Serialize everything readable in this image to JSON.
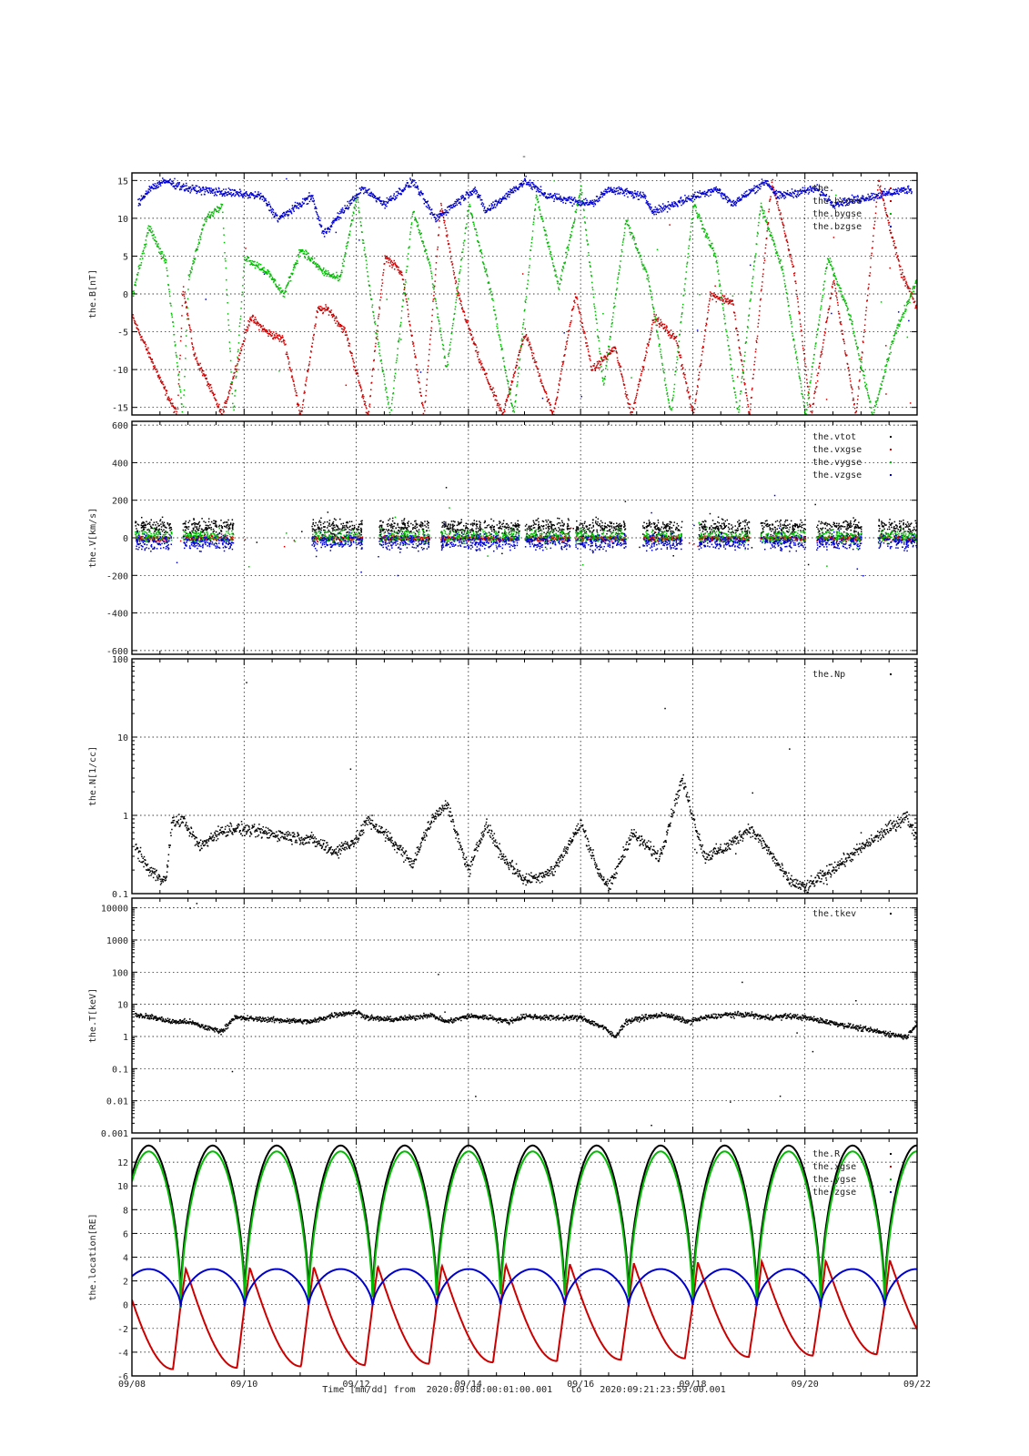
{
  "figure": {
    "top_title": "-",
    "caption": {
      "prefix": "Time [mm/dd]  from",
      "from": "2020:09:08:00:01:00.001",
      "mid": "to",
      "to": "2020:09:21:23:59:00.001"
    },
    "x_tick_labels": [
      "09/08",
      "09/10",
      "09/12",
      "09/14",
      "09/16",
      "09/18",
      "09/20",
      "09/22"
    ],
    "x_range_days": [
      0,
      14
    ]
  },
  "colors": {
    "black": "#000000",
    "red": "#cc0000",
    "green": "#00bb00",
    "blue": "#0000cc"
  },
  "chart_data": [
    {
      "type": "scatter",
      "ylabel": "the.B[nT]",
      "ylim": [
        -16,
        16
      ],
      "yticks": [
        15,
        10,
        5,
        0,
        -5,
        -10,
        -15
      ],
      "ytick_labels": [
        "15",
        "10",
        "5",
        "0",
        "-5",
        "-10",
        "-15"
      ],
      "legend": [
        "the.",
        "the.bxgse",
        "the.bygse",
        "the.bzgse"
      ],
      "legend_position": "top-right",
      "series": [
        {
          "name": "the.bxgse",
          "color": "red",
          "x": [
            0.0,
            0.3,
            0.6,
            0.8,
            0.9,
            1.1,
            1.3,
            1.6,
            2.1,
            2.4,
            2.7,
            3.0,
            3.3,
            3.5,
            3.8,
            4.2,
            4.5,
            4.8,
            5.2,
            5.5,
            5.8,
            6.2,
            6.6,
            7.0,
            7.5,
            7.9,
            8.2,
            8.6,
            8.9,
            9.3,
            9.7,
            10.0,
            10.3,
            10.7,
            11.0,
            11.4,
            11.8,
            12.1,
            12.5,
            12.9,
            13.3,
            13.7,
            14.0
          ],
          "y": [
            -3,
            -8,
            -13,
            -16,
            1,
            -8,
            -11,
            -16,
            -3,
            -5,
            -6,
            -16,
            -2,
            -2,
            -5,
            -16,
            5,
            3,
            -16,
            12,
            0,
            -9,
            -16,
            -5,
            -16,
            0,
            -10,
            -7,
            -16,
            -3,
            -6,
            -16,
            0,
            -1,
            -16,
            15,
            3,
            -16,
            2,
            -16,
            15,
            3,
            -2
          ]
        },
        {
          "name": "the.bygse",
          "color": "green",
          "x": [
            0.0,
            0.3,
            0.6,
            0.9,
            1.0,
            1.3,
            1.6,
            1.8,
            2.0,
            2.4,
            2.7,
            3.0,
            3.4,
            3.7,
            4.0,
            4.3,
            4.6,
            5.0,
            5.3,
            5.6,
            6.0,
            6.4,
            6.8,
            7.2,
            7.6,
            8.0,
            8.4,
            8.8,
            9.2,
            9.6,
            10.0,
            10.4,
            10.8,
            11.2,
            11.6,
            12.0,
            12.4,
            12.8,
            13.2,
            13.6,
            14.0
          ],
          "y": [
            0,
            9,
            4,
            -16,
            2,
            10,
            12,
            -16,
            5,
            3,
            0,
            6,
            3,
            2,
            13,
            -3,
            -16,
            11,
            4,
            -10,
            12,
            0,
            -16,
            13,
            1,
            14,
            -12,
            10,
            2,
            -16,
            12,
            5,
            -16,
            12,
            3,
            -16,
            5,
            -3,
            -16,
            -5,
            2
          ]
        },
        {
          "name": "the.bzgse",
          "color": "blue",
          "x": [
            0.1,
            0.3,
            0.6,
            1.0,
            2.3,
            2.6,
            3.2,
            3.4,
            4.1,
            4.5,
            5.0,
            5.4,
            6.1,
            6.3,
            7.0,
            7.4,
            8.2,
            8.5,
            9.1,
            9.3,
            10.4,
            10.7,
            11.3,
            11.5,
            12.2,
            12.5,
            13.9
          ],
          "y": [
            12,
            14,
            15,
            14,
            13,
            10,
            13,
            8,
            14,
            12,
            15,
            10,
            14,
            11,
            15,
            13,
            12,
            14,
            13,
            11,
            14,
            12,
            15,
            13,
            14,
            12,
            14
          ]
        }
      ]
    },
    {
      "type": "scatter",
      "ylabel": "the.V[km/s]",
      "ylim": [
        -620,
        620
      ],
      "yticks": [
        600,
        400,
        200,
        0,
        -200,
        -400,
        -600
      ],
      "ytick_labels": [
        "600",
        "400",
        "200",
        "0",
        "-200",
        "-400",
        "-600"
      ],
      "legend": [
        "the.vtot",
        "the.vxgse",
        "the.vygse",
        "the.vzgse"
      ],
      "legend_position": "top-right",
      "segments": [
        [
          0.05,
          0.7
        ],
        [
          0.9,
          1.8
        ],
        [
          3.2,
          4.1
        ],
        [
          4.4,
          5.3
        ],
        [
          5.5,
          6.9
        ],
        [
          7.0,
          7.8
        ],
        [
          7.9,
          8.8
        ],
        [
          9.1,
          9.8
        ],
        [
          10.1,
          11.0
        ],
        [
          11.2,
          12.0
        ],
        [
          12.2,
          13.0
        ],
        [
          13.3,
          14.0
        ]
      ],
      "series": [
        {
          "name": "the.vtot",
          "color": "black",
          "typical": 60,
          "spread": 60
        },
        {
          "name": "the.vxgse",
          "color": "red",
          "typical": 0,
          "spread": 20
        },
        {
          "name": "the.vygse",
          "color": "green",
          "typical": 10,
          "spread": 50
        },
        {
          "name": "the.vzgse",
          "color": "blue",
          "typical": -20,
          "spread": 60
        }
      ]
    },
    {
      "type": "scatter",
      "scale": "log",
      "ylabel": "the.N[1/cc]",
      "ylim": [
        0.1,
        100
      ],
      "yticks": [
        100,
        10,
        1,
        0.1
      ],
      "ytick_labels": [
        "100",
        "10",
        "1",
        "0.1"
      ],
      "legend": [
        "the.Np"
      ],
      "legend_position": "top-right",
      "series": [
        {
          "name": "the.Np",
          "color": "black",
          "x": [
            0.05,
            0.3,
            0.6,
            0.7,
            0.9,
            1.2,
            1.5,
            1.8,
            3.2,
            3.6,
            4.0,
            4.2,
            4.6,
            5.0,
            5.3,
            5.6,
            5.8,
            6.0,
            6.3,
            6.6,
            7.0,
            7.5,
            8.0,
            8.3,
            8.5,
            8.9,
            9.4,
            9.8,
            10.2,
            10.6,
            11.0,
            11.3,
            11.7,
            12.0,
            13.8,
            14.0
          ],
          "y": [
            0.4,
            0.2,
            0.15,
            0.8,
            0.9,
            0.4,
            0.6,
            0.7,
            0.5,
            0.35,
            0.5,
            0.9,
            0.5,
            0.25,
            0.8,
            1.5,
            0.5,
            0.2,
            0.8,
            0.3,
            0.15,
            0.2,
            0.8,
            0.2,
            0.12,
            0.6,
            0.3,
            3,
            0.3,
            0.4,
            0.7,
            0.4,
            0.15,
            0.12,
            1,
            0.5
          ]
        }
      ]
    },
    {
      "type": "scatter",
      "scale": "log",
      "ylabel": "the.T[keV]",
      "ylim": [
        0.001,
        20000
      ],
      "yticks": [
        10000,
        1000,
        100,
        10,
        1,
        0.1,
        0.01,
        0.001
      ],
      "ytick_labels": [
        "10000",
        "1000",
        "100",
        "10",
        "1",
        "0.1",
        "0.01",
        "0.001"
      ],
      "legend": [
        "the.tkev"
      ],
      "legend_position": "top-right",
      "series": [
        {
          "name": "the.tkev",
          "color": "black",
          "x": [
            0.05,
            0.4,
            0.7,
            1.0,
            1.3,
            1.6,
            1.8,
            3.2,
            3.6,
            4.0,
            4.2,
            4.6,
            5.0,
            5.3,
            5.6,
            6.0,
            6.4,
            6.7,
            7.0,
            7.4,
            7.8,
            8.0,
            8.4,
            8.6,
            8.8,
            9.1,
            9.5,
            9.9,
            10.2,
            10.6,
            11.0,
            11.3,
            11.7,
            12.0,
            13.8,
            14.0
          ],
          "y": [
            5,
            4,
            3,
            3,
            2,
            1.5,
            4,
            3,
            5,
            6,
            4,
            3.5,
            4,
            5,
            3,
            4.5,
            4,
            3,
            4.5,
            4,
            4,
            4,
            2,
            1,
            3,
            4,
            5,
            3,
            4,
            5,
            5,
            4,
            4.5,
            4,
            1,
            3
          ]
        }
      ]
    },
    {
      "type": "line",
      "ylabel": "the.location[RE]",
      "ylim": [
        -6,
        14
      ],
      "yticks": [
        12,
        10,
        8,
        6,
        4,
        2,
        0,
        -2,
        -4,
        -6
      ],
      "ytick_labels": [
        "12",
        "10",
        "8",
        "6",
        "4",
        "2",
        "0",
        "-2",
        "-4",
        "-6"
      ],
      "legend": [
        "the.R",
        "the.xgse",
        "the.ygse",
        "the.zgse"
      ],
      "legend_position": "top-right",
      "orbit_period_days": 1.141,
      "first_perigee_day": 0.87,
      "series": [
        {
          "name": "the.R",
          "color": "black",
          "apogee": 13.4,
          "perigee": 0.3
        },
        {
          "name": "the.xgse",
          "color": "red",
          "min_start": -5.5,
          "min_end": -4.1,
          "max_start": 3.0,
          "max_end": 3.8
        },
        {
          "name": "the.ygse",
          "color": "green",
          "apogee": 12.9,
          "perigee": -0.3
        },
        {
          "name": "the.zgse",
          "color": "blue",
          "apogee": 3.0,
          "perigee": -0.2
        }
      ]
    }
  ]
}
